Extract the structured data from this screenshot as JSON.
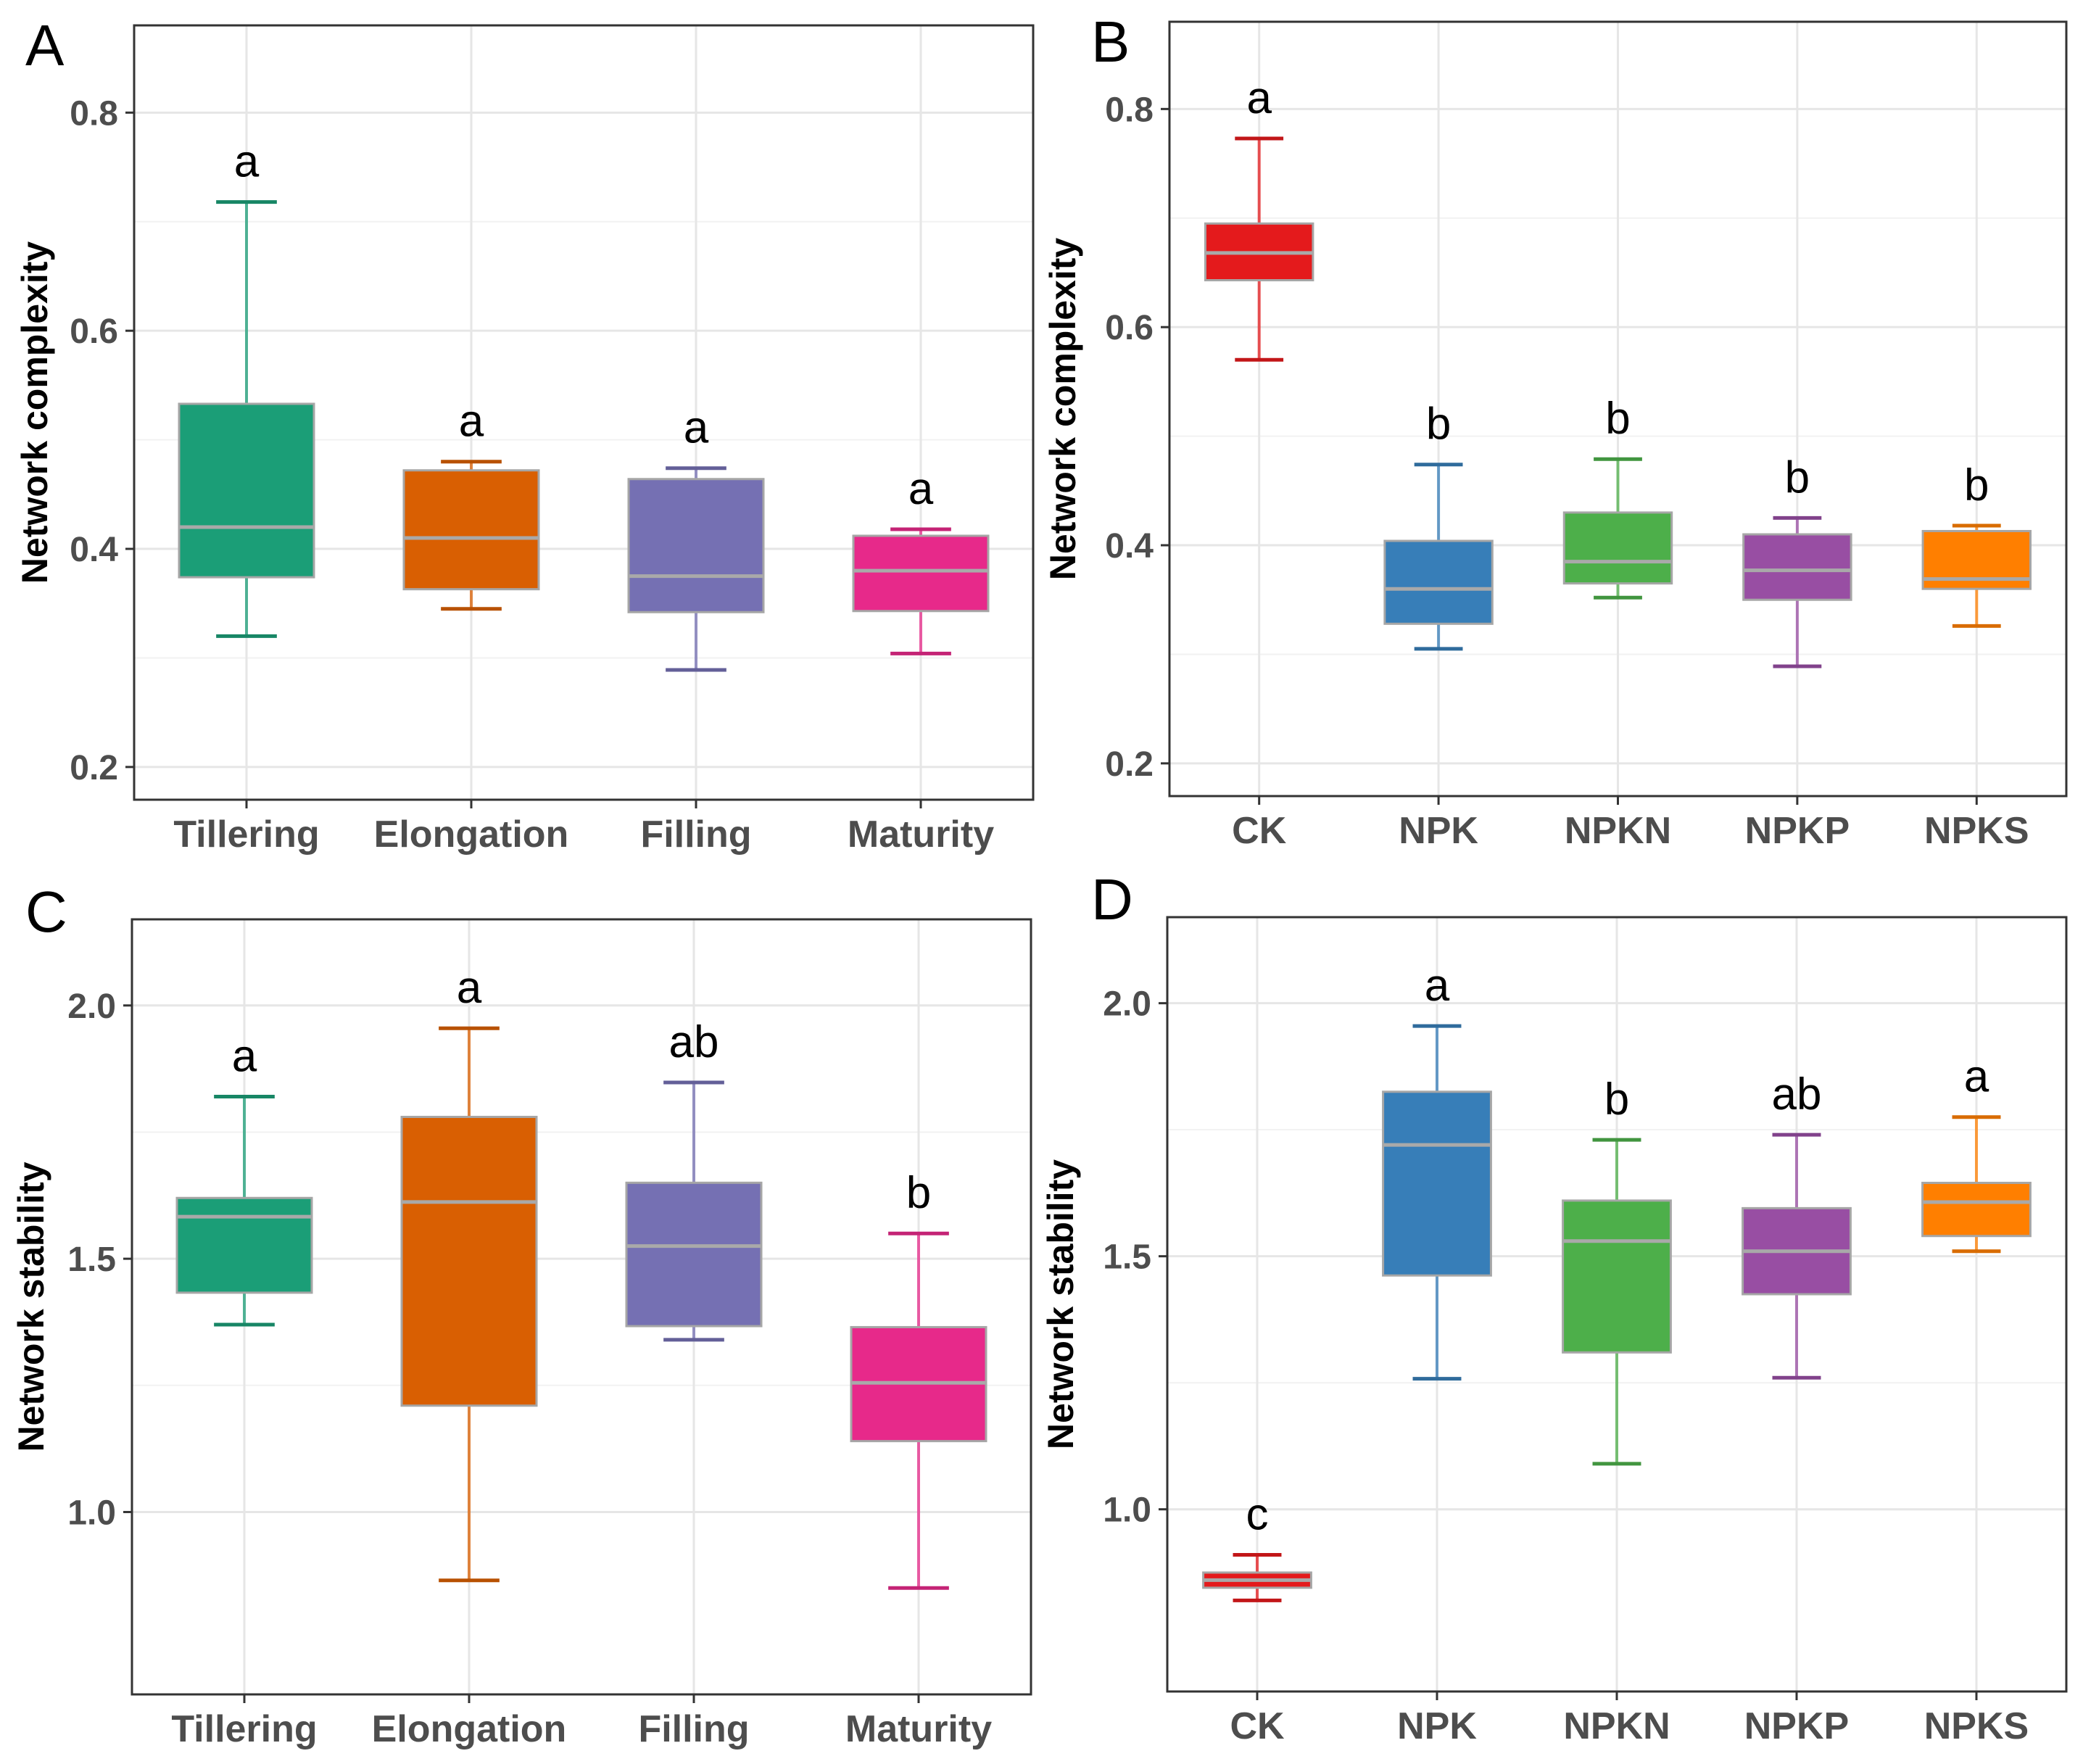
{
  "chart_data": [
    {
      "panel": "A",
      "type": "box",
      "ylabel": "Network complexity",
      "categories": [
        "Tillering",
        "Elongation",
        "Filling",
        "Maturity"
      ],
      "yticks": [
        0.2,
        0.4,
        0.6,
        0.8
      ],
      "ylim": [
        0.17,
        0.88
      ],
      "boxes": [
        {
          "min": 0.32,
          "q1": 0.374,
          "median": 0.42,
          "q3": 0.533,
          "max": 0.718,
          "color": "#1b9e77",
          "sig": "a"
        },
        {
          "min": 0.345,
          "q1": 0.363,
          "median": 0.41,
          "q3": 0.472,
          "max": 0.48,
          "color": "#d95f02",
          "sig": "a"
        },
        {
          "min": 0.289,
          "q1": 0.342,
          "median": 0.375,
          "q3": 0.464,
          "max": 0.474,
          "color": "#7570b3",
          "sig": "a"
        },
        {
          "min": 0.304,
          "q1": 0.343,
          "median": 0.38,
          "q3": 0.412,
          "max": 0.418,
          "color": "#e7298a",
          "sig": "a"
        }
      ]
    },
    {
      "panel": "B",
      "type": "box",
      "ylabel": "Network complexity",
      "categories": [
        "CK",
        "NPK",
        "NPKN",
        "NPKP",
        "NPKS"
      ],
      "yticks": [
        0.2,
        0.4,
        0.6,
        0.8
      ],
      "ylim": [
        0.17,
        0.88
      ],
      "boxes": [
        {
          "min": 0.57,
          "q1": 0.643,
          "median": 0.668,
          "q3": 0.695,
          "max": 0.773,
          "color": "#e41a1c",
          "sig": "a"
        },
        {
          "min": 0.305,
          "q1": 0.328,
          "median": 0.36,
          "q3": 0.404,
          "max": 0.474,
          "color": "#377eb8",
          "sig": "b"
        },
        {
          "min": 0.352,
          "q1": 0.365,
          "median": 0.385,
          "q3": 0.43,
          "max": 0.479,
          "color": "#4daf4a",
          "sig": "b"
        },
        {
          "min": 0.289,
          "q1": 0.35,
          "median": 0.377,
          "q3": 0.41,
          "max": 0.425,
          "color": "#984ea3",
          "sig": "b"
        },
        {
          "min": 0.326,
          "q1": 0.36,
          "median": 0.369,
          "q3": 0.413,
          "max": 0.418,
          "color": "#ff7f00",
          "sig": "b"
        }
      ]
    },
    {
      "panel": "C",
      "type": "box",
      "ylabel": "Network stability",
      "categories": [
        "Tillering",
        "Elongation",
        "Filling",
        "Maturity"
      ],
      "yticks": [
        1.0,
        1.5,
        2.0
      ],
      "ylim": [
        0.64,
        2.17
      ],
      "boxes": [
        {
          "min": 1.37,
          "q1": 1.433,
          "median": 1.583,
          "q3": 1.62,
          "max": 1.82,
          "color": "#1b9e77",
          "sig": "a"
        },
        {
          "min": 0.865,
          "q1": 1.21,
          "median": 1.612,
          "q3": 1.78,
          "max": 1.955,
          "color": "#d95f02",
          "sig": "a"
        },
        {
          "min": 1.34,
          "q1": 1.367,
          "median": 1.525,
          "q3": 1.65,
          "max": 1.848,
          "color": "#7570b3",
          "sig": "ab"
        },
        {
          "min": 0.85,
          "q1": 1.14,
          "median": 1.255,
          "q3": 1.365,
          "max": 1.55,
          "color": "#e7298a",
          "sig": "b"
        }
      ]
    },
    {
      "panel": "D",
      "type": "box",
      "ylabel": "Network stability",
      "categories": [
        "CK",
        "NPK",
        "NPKN",
        "NPKP",
        "NPKS"
      ],
      "yticks": [
        1.0,
        1.5,
        2.0
      ],
      "ylim": [
        0.64,
        2.17
      ],
      "boxes": [
        {
          "min": 0.82,
          "q1": 0.845,
          "median": 0.86,
          "q3": 0.875,
          "max": 0.91,
          "color": "#e41a1c",
          "sig": "c"
        },
        {
          "min": 1.258,
          "q1": 1.462,
          "median": 1.72,
          "q3": 1.825,
          "max": 1.955,
          "color": "#377eb8",
          "sig": "a"
        },
        {
          "min": 1.09,
          "q1": 1.31,
          "median": 1.53,
          "q3": 1.61,
          "max": 1.73,
          "color": "#4daf4a",
          "sig": "b"
        },
        {
          "min": 1.26,
          "q1": 1.425,
          "median": 1.51,
          "q3": 1.595,
          "max": 1.74,
          "color": "#984ea3",
          "sig": "ab"
        },
        {
          "min": 1.51,
          "q1": 1.54,
          "median": 1.607,
          "q3": 1.645,
          "max": 1.775,
          "color": "#ff7f00",
          "sig": "a"
        }
      ]
    }
  ]
}
